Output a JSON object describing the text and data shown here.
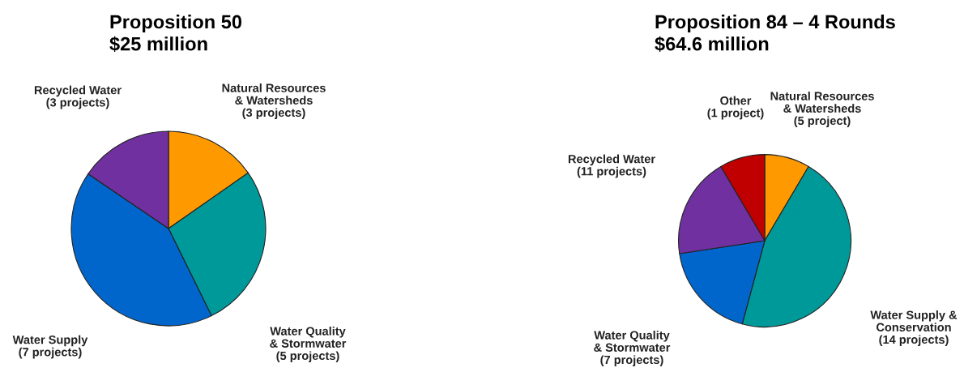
{
  "chart_data": [
    {
      "type": "pie",
      "title": "Proposition 50\n$25 million",
      "categories": [
        "Natural Resources\n& Watersheds\n(3 projects)",
        "Water Quality\n& Stormwater\n(5 projects)",
        "Water Supply\n(7 projects)",
        "Recycled Water\n(3 projects)"
      ],
      "values": [
        15.3,
        27.4,
        41.8,
        15.5
      ],
      "colors": [
        "#ff9900",
        "#009999",
        "#0066cc",
        "#7030a0"
      ]
    },
    {
      "type": "pie",
      "title": "Proposition 84 – 4 Rounds\n$64.6 million",
      "categories": [
        "Natural Resources\n& Watersheds\n(5 project)",
        "Water Supply &\nConservation\n(14 projects)",
        "Water Quality\n& Stormwater\n(7 projects)",
        "Recycled Water\n(11 projects)",
        "Other\n(1 project)"
      ],
      "values": [
        8.5,
        45.7,
        18.4,
        18.9,
        8.5
      ],
      "colors": [
        "#ff9900",
        "#009999",
        "#0066cc",
        "#7030a0",
        "#c00000"
      ]
    }
  ]
}
